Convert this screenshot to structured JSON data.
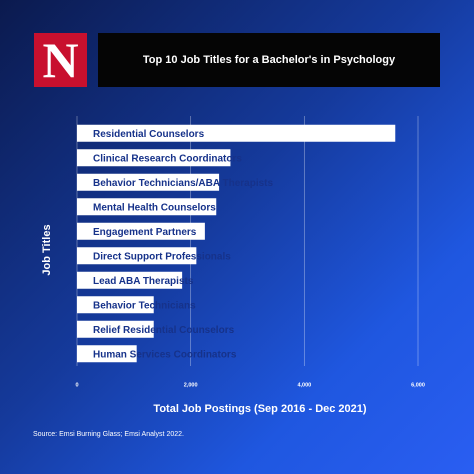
{
  "brand": {
    "logo": "N"
  },
  "chart_data": {
    "type": "bar",
    "orientation": "horizontal",
    "title": "Top 10 Job Titles for a Bachelor's in Psychology",
    "xlabel": "Total Job Postings (Sep 2016 - Dec 2021)",
    "ylabel": "Job Titles",
    "categories": [
      "Residential Counselors",
      "Clinical Research Coordinators",
      "Behavior Technicians/ABA Therapists",
      "Mental Health Counselors",
      "Engagement Partners",
      "Direct Support Professionals",
      "Lead ABA Therapists",
      "Behavior Technicians",
      "Relief Residential Counselors",
      "Human Services Coordinators"
    ],
    "values": [
      5600,
      2700,
      2500,
      2450,
      2250,
      2100,
      1850,
      1350,
      1350,
      1050
    ],
    "color": "#ffffff",
    "xlim": [
      0,
      6000
    ],
    "xticks": [
      0,
      {
        "value": 2000,
        "label": "2,000"
      },
      {
        "value": 4000,
        "label": "4,000"
      },
      {
        "value": 6000,
        "label": "6,000"
      }
    ],
    "grid": true,
    "source": "Source: Emsi Burning Glass; Emsi Analyst 2022."
  }
}
